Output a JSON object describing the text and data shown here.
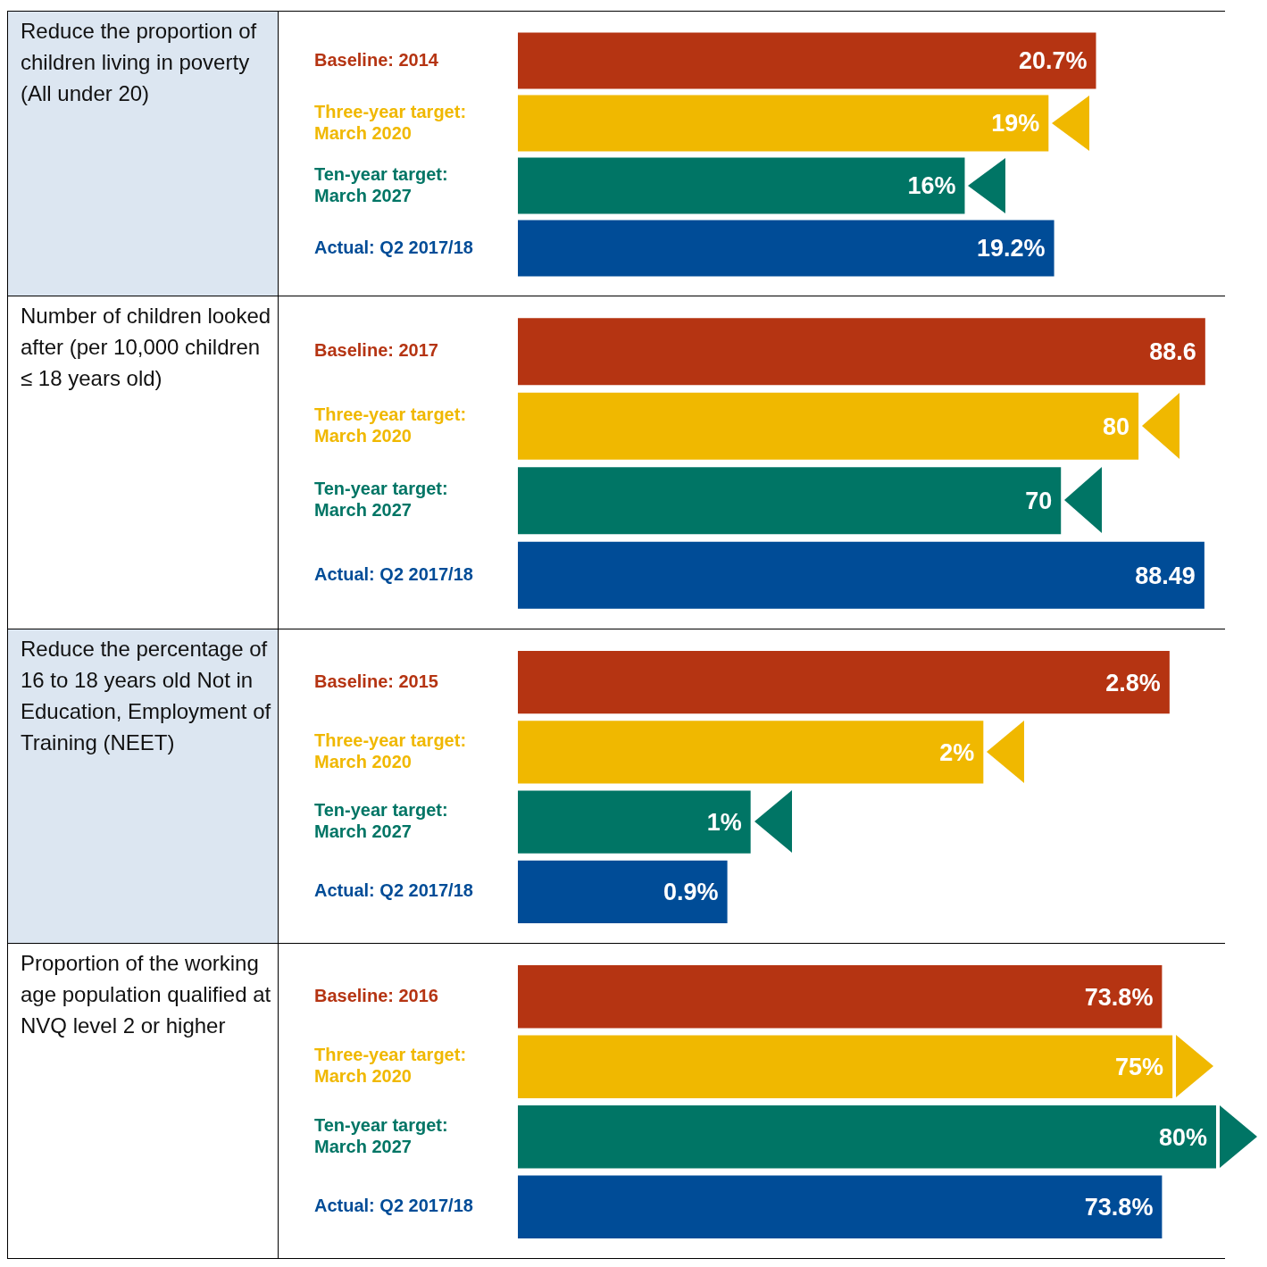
{
  "chart_data": [
    {
      "type": "bar",
      "orientation": "horizontal",
      "title": "Reduce the proportion of children living in poverty (All under 20)",
      "categories": [
        "Baseline: 2014",
        "Three-year target: March 2020",
        "Ten-year target: March 2027",
        "Actual: Q2 2017/18"
      ],
      "values": [
        20.7,
        19,
        16,
        19.2
      ],
      "value_labels": [
        "20.7%",
        "19%",
        "16%",
        "19.2%"
      ],
      "colors": [
        "#b53412",
        "#f0b800",
        "#007565",
        "#004c97"
      ],
      "tick_labels": "y"
    },
    {
      "type": "bar",
      "orientation": "horizontal",
      "title": "Number of children looked after (per 10,000 children ≤ 18 years old)",
      "categories": [
        "Baseline: 2017",
        "Three-year target: March 2020",
        "Ten-year target: March 2027",
        "Actual: Q2 2017/18"
      ],
      "values": [
        88.6,
        80,
        70,
        88.49
      ],
      "data_labels": true,
      "colors": [
        "#b53412",
        "#f0b800",
        "#007565",
        "#004c97"
      ],
      "tick_labels": "y"
    },
    {
      "type": "bar",
      "orientation": "horizontal",
      "title": "Reduce the percentage of 16 to 18 years old Not in Education, Employment of Training (NEET)",
      "categories": [
        "Baseline: 2015",
        "Three-year target: March 2020",
        "Ten-year target: March 2027",
        "Actual: Q2 2017/18"
      ],
      "values": [
        2.8,
        2,
        1,
        0.9
      ],
      "value_labels": [
        "2.8%",
        "2%",
        "1%",
        "0.9%"
      ],
      "colors": [
        "#b53412",
        "#f0b800",
        "#007565",
        "#004c97"
      ],
      "tick_labels": "y"
    },
    {
      "type": "bar",
      "orientation": "horizontal",
      "title": "Proportion of the working age population qualified at NVQ level 2 or higher",
      "categories": [
        "Baseline: 2016",
        "Three-year target: March 2020",
        "Ten-year target: March 2027",
        "Actual: Q2 2017/18"
      ],
      "values": [
        73.8,
        75,
        80,
        73.8
      ],
      "value_labels": [
        "73.8%",
        "75%",
        "80%",
        "73.8%"
      ],
      "colors": [
        "#b53412",
        "#f0b800",
        "#007565",
        "#004c97"
      ],
      "tick_labels": "y"
    }
  ]
}
